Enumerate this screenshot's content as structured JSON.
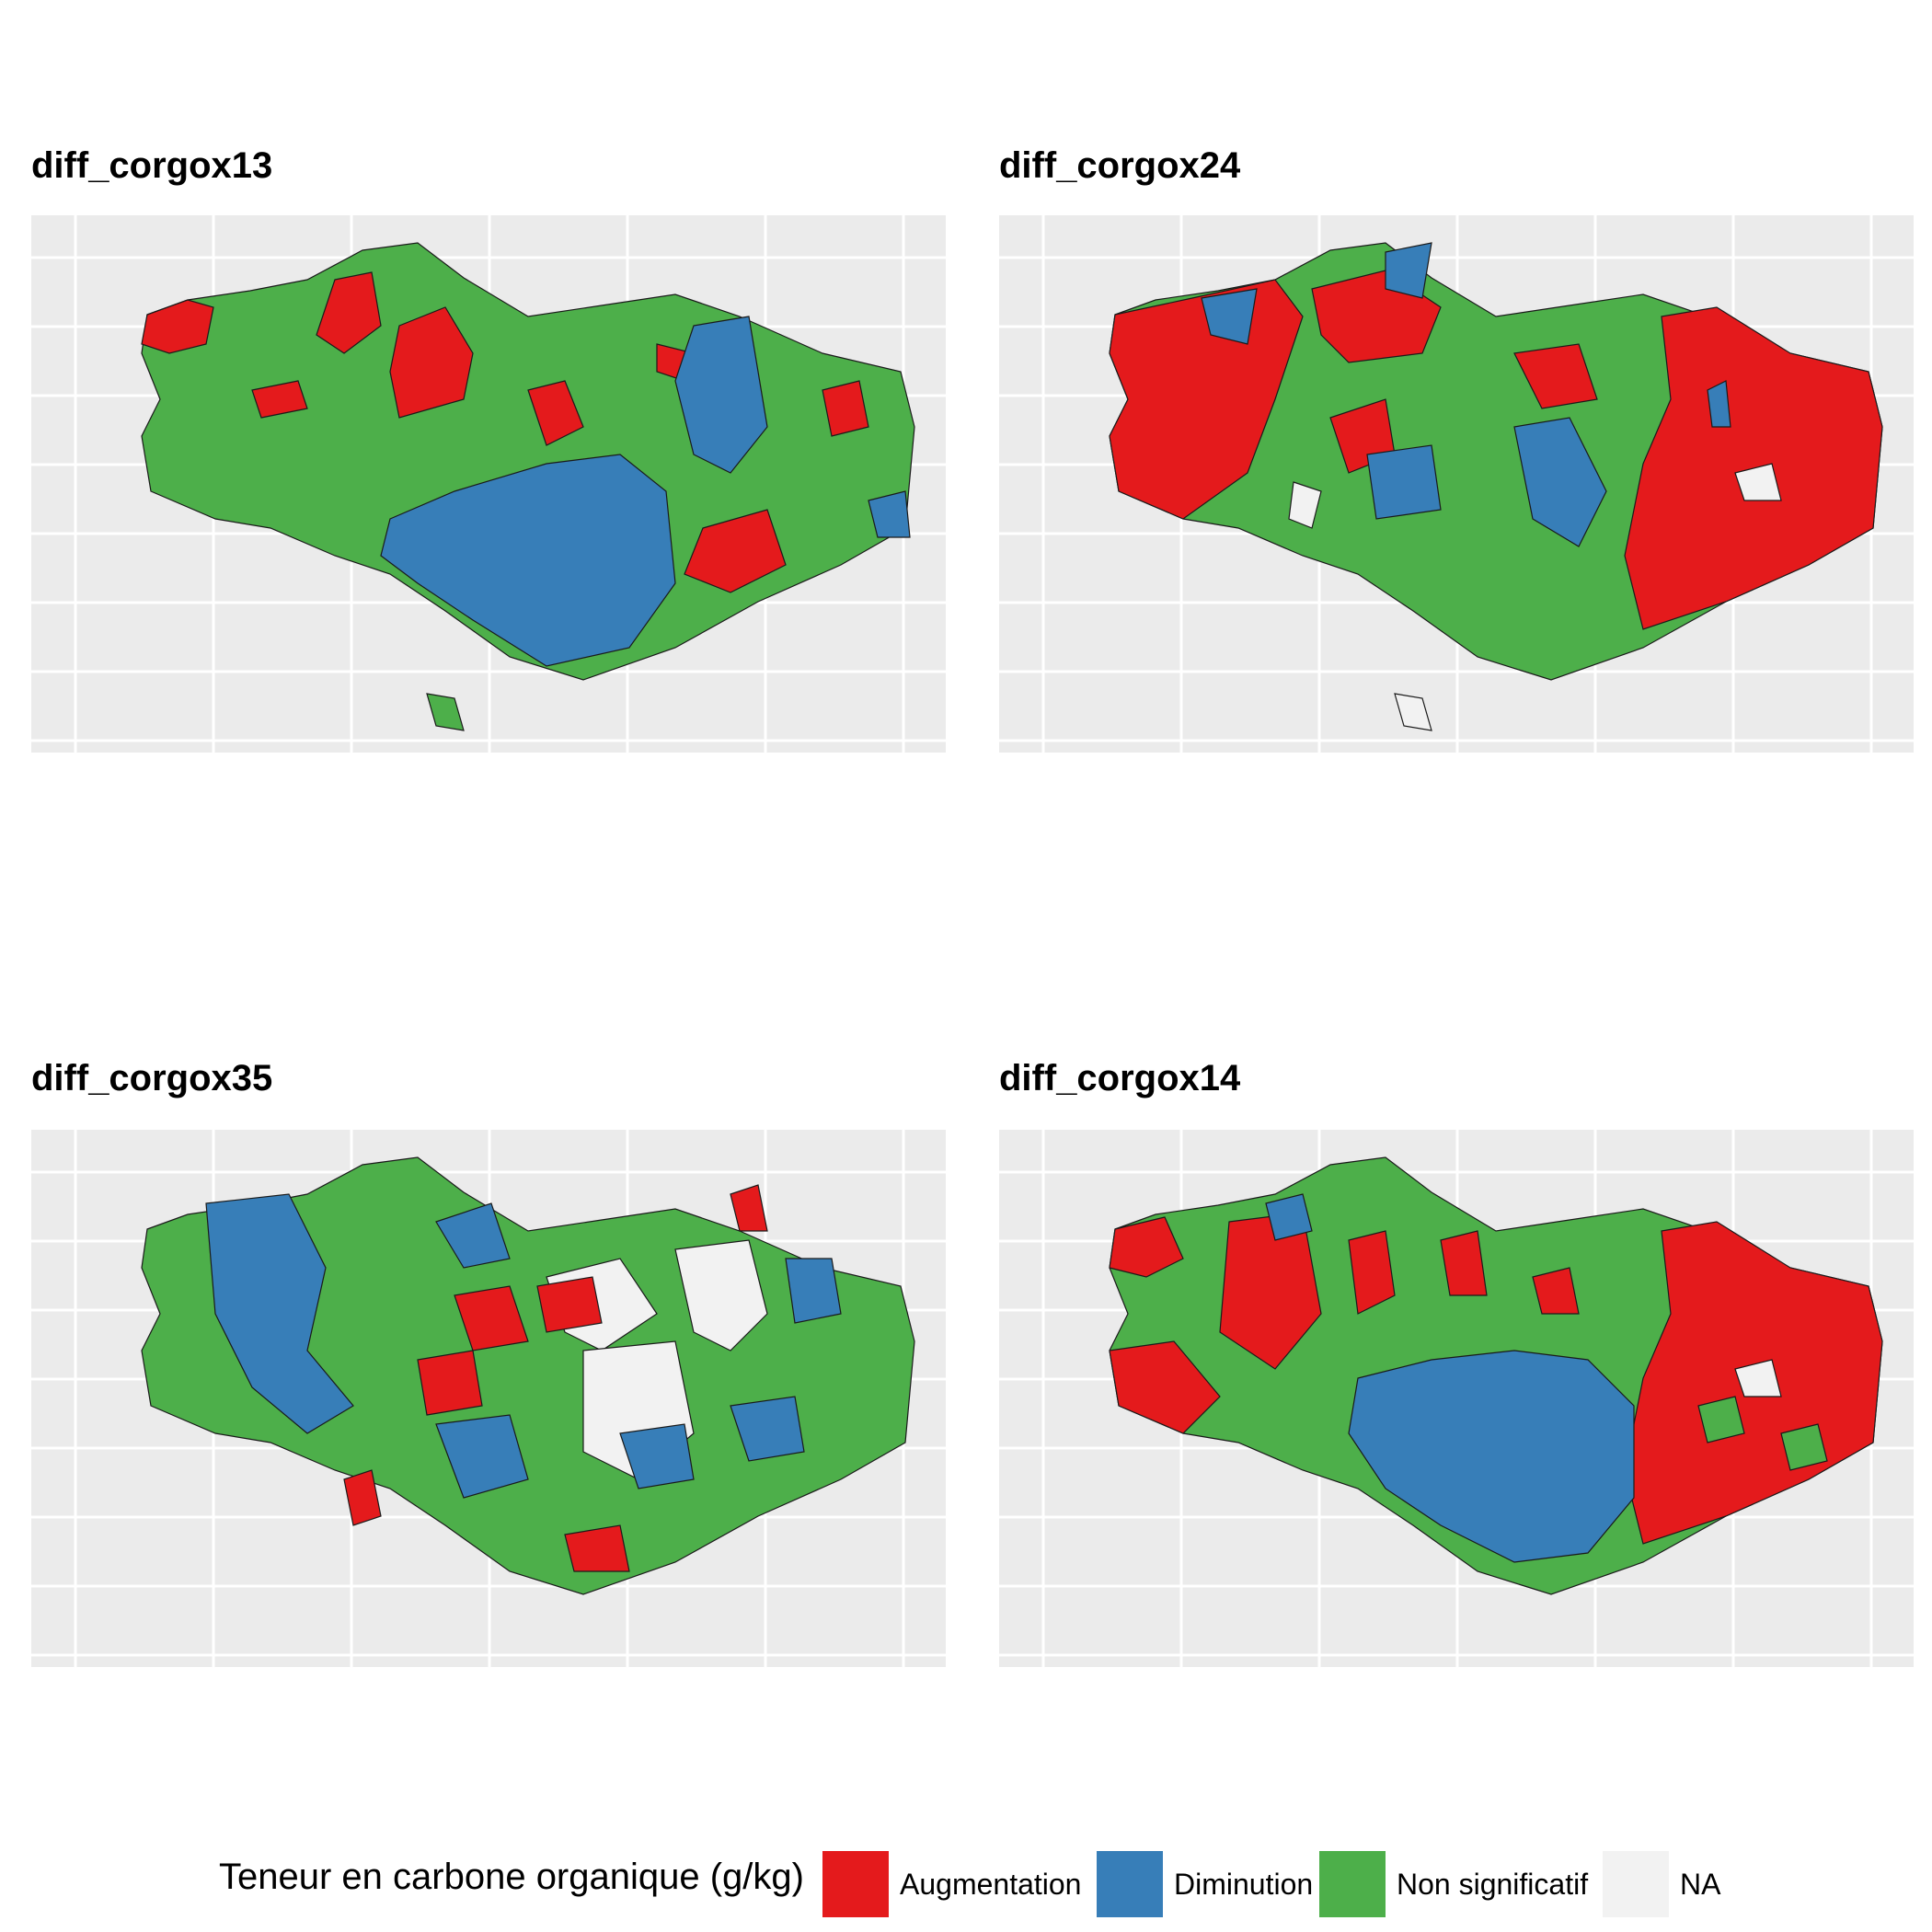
{
  "categories": {
    "augmentation": {
      "label": "Augmentation",
      "color": "#e41a1c"
    },
    "diminution": {
      "label": "Diminution",
      "color": "#377eb8"
    },
    "non_significatif": {
      "label": "Non significatif",
      "color": "#4daf4a"
    },
    "na": {
      "label": "NA",
      "color": "#f2f2f2"
    }
  },
  "legend": {
    "title": "Teneur en carbone organique (g/kg)"
  },
  "panels": [
    {
      "title": "diff_corgox13"
    },
    {
      "title": "diff_corgox24"
    },
    {
      "title": "diff_corgox35"
    },
    {
      "title": "diff_corgox14"
    }
  ]
}
